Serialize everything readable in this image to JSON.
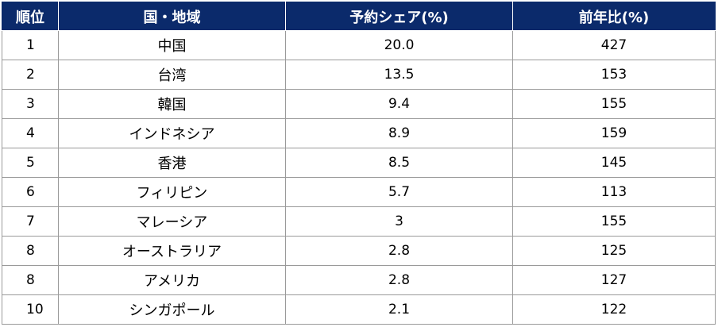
{
  "table": {
    "headers": [
      "順位",
      "国・地域",
      "予約シェア(%)",
      "前年比(%)"
    ],
    "rows": [
      {
        "rank": "1",
        "region": "中国",
        "share": "20.0",
        "yoy": "427"
      },
      {
        "rank": "2",
        "region": "台湾",
        "share": "13.5",
        "yoy": "153"
      },
      {
        "rank": "3",
        "region": "韓国",
        "share": "9.4",
        "yoy": "155"
      },
      {
        "rank": "4",
        "region": "インドネシア",
        "share": "8.9",
        "yoy": "159"
      },
      {
        "rank": "5",
        "region": "香港",
        "share": "8.5",
        "yoy": "145"
      },
      {
        "rank": "6",
        "region": "フィリピン",
        "share": "5.7",
        "yoy": "113"
      },
      {
        "rank": "7",
        "region": "マレーシア",
        "share": "3",
        "yoy": "155"
      },
      {
        "rank": "8",
        "region": "オーストラリア",
        "share": "2.8",
        "yoy": "125"
      },
      {
        "rank": "8",
        "region": "アメリカ",
        "share": "2.8",
        "yoy": "127"
      },
      {
        "rank": "10",
        "region": "シンガポール",
        "share": "2.1",
        "yoy": "122"
      }
    ]
  },
  "colors": {
    "header_background": "#0b2a6b",
    "header_text": "#ffffff",
    "grid_line": "#9a9a9a"
  }
}
